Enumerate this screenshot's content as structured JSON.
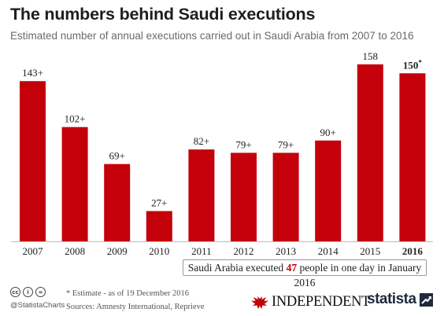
{
  "title": "The numbers behind Saudi executions",
  "subtitle": "Estimated number of annual executions carried out in Saudi Arabia from 2007 to 2016",
  "chart_data": {
    "type": "bar",
    "categories": [
      "2007",
      "2008",
      "2009",
      "2010",
      "2011",
      "2012",
      "2013",
      "2014",
      "2015",
      "2016"
    ],
    "values": [
      143,
      102,
      69,
      27,
      82,
      79,
      79,
      90,
      158,
      150
    ],
    "data_labels": [
      "143+",
      "102+",
      "69+",
      "27+",
      "82+",
      "79+",
      "79+",
      "90+",
      "158",
      "150*"
    ],
    "bold_category": "2016",
    "bar_color": "#c4000a",
    "ylim": [
      0,
      160
    ],
    "grid": false,
    "legend": "none"
  },
  "annotation": {
    "prefix": "Saudi Arabia executed ",
    "highlight": "47",
    "suffix": " people in one day in January 2016"
  },
  "footer": {
    "note": "* Estimate - as of 19 December 2016",
    "sources": "Sources: Amnesty International, Reprieve",
    "handle": "@StatistaCharts",
    "license_icons": [
      "cc",
      "i",
      "="
    ],
    "logo_independent": "INDEPENDENT",
    "logo_statista": "statista"
  }
}
